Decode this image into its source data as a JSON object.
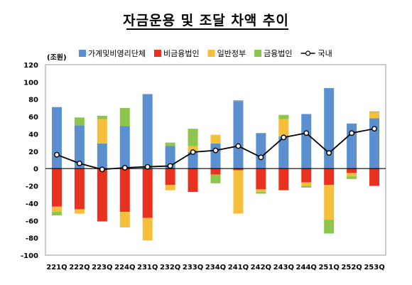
{
  "chart_data": {
    "type": "bar",
    "stacked": true,
    "title": "자금운용 및 조달 차액 추이",
    "ylabel": "(조원)",
    "ylim": [
      -100,
      120
    ],
    "yticks": [
      -100,
      -80,
      -60,
      -40,
      -20,
      0,
      20,
      40,
      60,
      80,
      100,
      120
    ],
    "grid": false,
    "legend": "top",
    "categories": [
      "221Q",
      "222Q",
      "223Q",
      "224Q",
      "231Q",
      "232Q",
      "233Q",
      "234Q",
      "241Q",
      "242Q",
      "243Q",
      "244Q",
      "251Q",
      "252Q",
      "253Q"
    ],
    "series": [
      {
        "name": "가계및비영리단체",
        "type": "bar",
        "color": "#5b8fd0",
        "values": [
          71,
          50,
          29,
          49,
          86,
          26,
          19,
          29,
          78,
          41,
          37,
          63,
          93,
          52,
          58
        ]
      },
      {
        "name": "비금융법인",
        "type": "bar",
        "color": "#e8311f",
        "values": [
          -44,
          -47,
          -61,
          -50,
          -57,
          -19,
          -27,
          -7,
          -2,
          -24,
          -25,
          -16,
          -19,
          -5,
          -20
        ]
      },
      {
        "name": "일반정부",
        "type": "bar",
        "color": "#f5bf3c",
        "values": [
          -6,
          -5,
          28,
          -18,
          -26,
          -6,
          7,
          10,
          -50,
          -3,
          20,
          -4,
          -40,
          -4,
          7
        ]
      },
      {
        "name": "금융법인",
        "type": "bar",
        "color": "#8dc64d",
        "values": [
          -4,
          9,
          4,
          21,
          0,
          4,
          20,
          -10,
          1,
          -2,
          5,
          -2,
          -16,
          -3,
          1
        ]
      },
      {
        "name": "국내",
        "type": "line",
        "color": "#000000",
        "values": [
          16,
          6,
          -1,
          1,
          2,
          3,
          19,
          21,
          26,
          13,
          36,
          41,
          18,
          41,
          46
        ]
      }
    ]
  }
}
